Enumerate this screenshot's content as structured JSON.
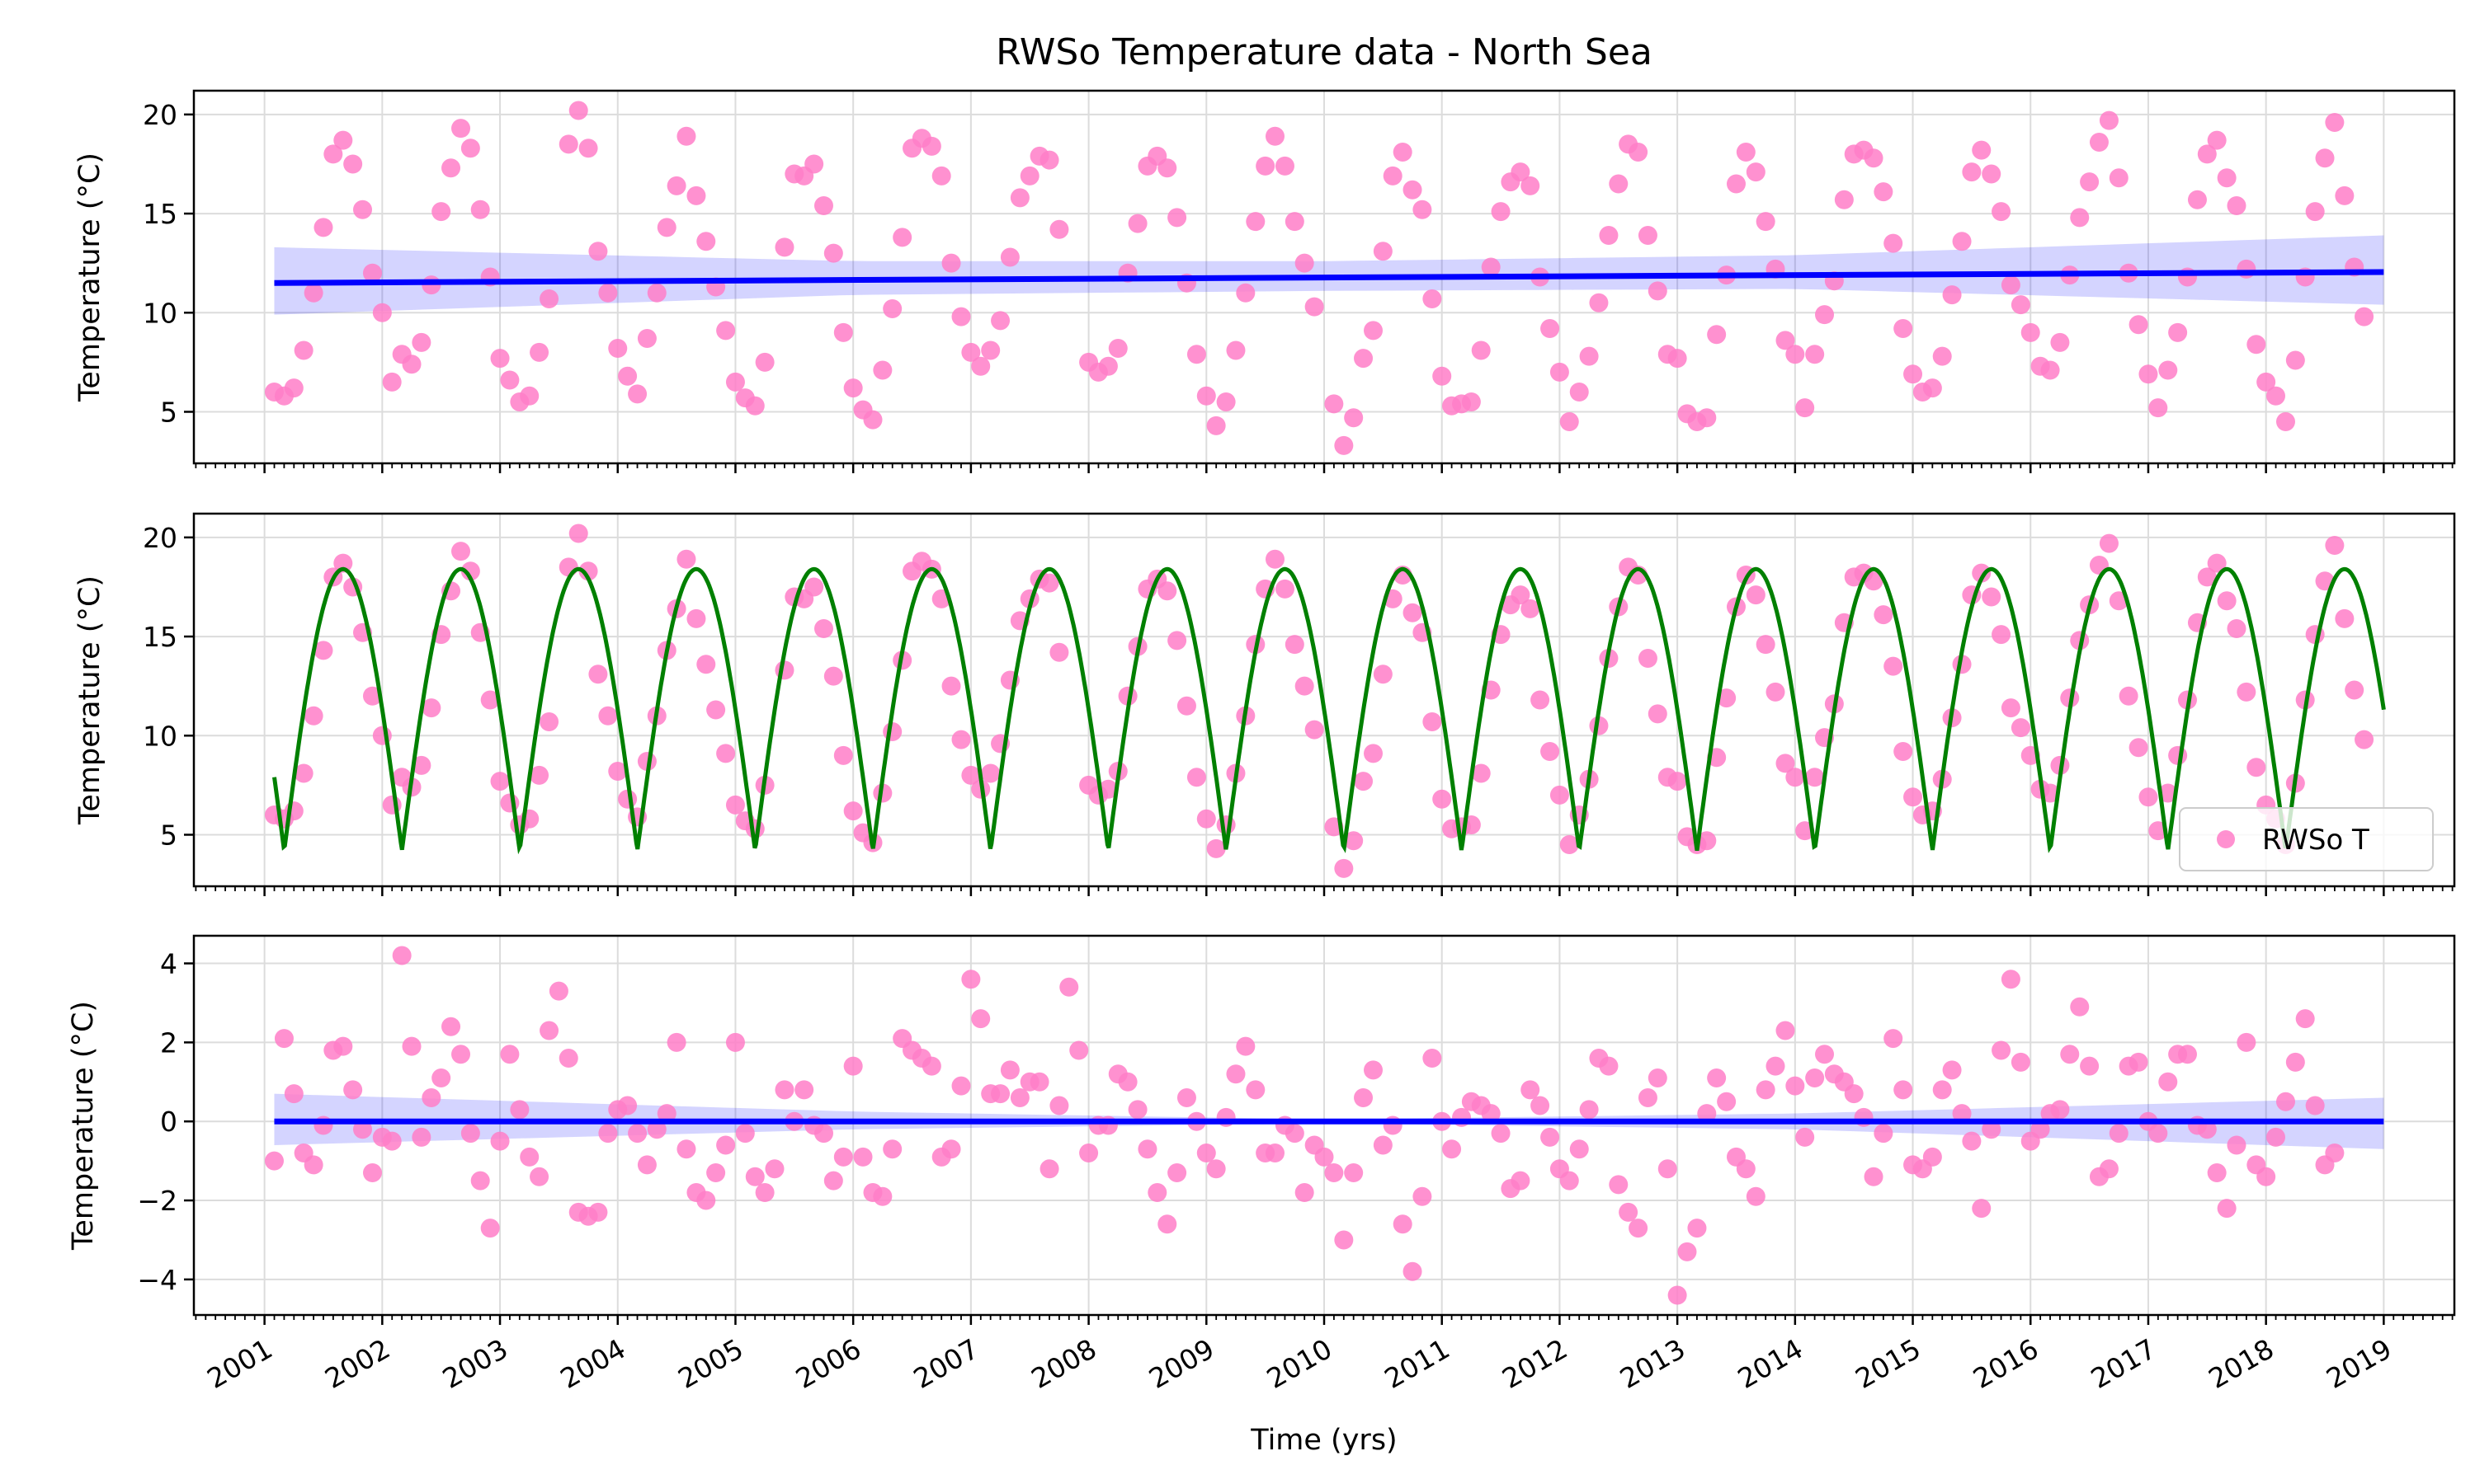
{
  "chart_data": {
    "type": "scatter",
    "title": "RWSo Temperature data - North Sea",
    "xlabel": "Time (yrs)",
    "xlim": [
      2000.4,
      2019.6
    ],
    "x_ticks": [
      "2001",
      "2002",
      "2003",
      "2004",
      "2005",
      "2006",
      "2007",
      "2008",
      "2009",
      "2010",
      "2011",
      "2012",
      "2013",
      "2014",
      "2015",
      "2016",
      "2017",
      "2018",
      "2019"
    ],
    "grid": true,
    "colors": {
      "points": "#ff7ec8",
      "trend": "#0000ff",
      "band": "#0000ff",
      "seasonal": "#008000"
    },
    "time": [
      2001.083,
      2001.167,
      2001.25,
      2001.333,
      2001.417,
      2001.5,
      2001.583,
      2001.667,
      2001.75,
      2001.833,
      2001.917,
      2002.0,
      2002.083,
      2002.167,
      2002.25,
      2002.333,
      2002.417,
      2002.5,
      2002.583,
      2002.667,
      2002.75,
      2002.833,
      2002.917,
      2003.0,
      2003.083,
      2003.167,
      2003.25,
      2003.333,
      2003.417,
      2003.5,
      2003.583,
      2003.667,
      2003.75,
      2003.833,
      2003.917,
      2004.0,
      2004.083,
      2004.167,
      2004.25,
      2004.333,
      2004.417,
      2004.5,
      2004.583,
      2004.667,
      2004.75,
      2004.833,
      2004.917,
      2005.0,
      2005.083,
      2005.167,
      2005.25,
      2005.333,
      2005.417,
      2005.5,
      2005.583,
      2005.667,
      2005.75,
      2005.833,
      2005.917,
      2006.0,
      2006.083,
      2006.167,
      2006.25,
      2006.333,
      2006.417,
      2006.5,
      2006.583,
      2006.667,
      2006.75,
      2006.833,
      2006.917,
      2007.0,
      2007.083,
      2007.167,
      2007.25,
      2007.333,
      2007.417,
      2007.5,
      2007.583,
      2007.667,
      2007.75,
      2007.833,
      2007.917,
      2008.0,
      2008.083,
      2008.167,
      2008.25,
      2008.333,
      2008.417,
      2008.5,
      2008.583,
      2008.667,
      2008.75,
      2008.833,
      2008.917,
      2009.0,
      2009.083,
      2009.167,
      2009.25,
      2009.333,
      2009.417,
      2009.5,
      2009.583,
      2009.667,
      2009.75,
      2009.833,
      2009.917,
      2010.0,
      2010.083,
      2010.167,
      2010.25,
      2010.333,
      2010.417,
      2010.5,
      2010.583,
      2010.667,
      2010.75,
      2010.833,
      2010.917,
      2011.0,
      2011.083,
      2011.167,
      2011.25,
      2011.333,
      2011.417,
      2011.5,
      2011.583,
      2011.667,
      2011.75,
      2011.833,
      2011.917,
      2012.0,
      2012.083,
      2012.167,
      2012.25,
      2012.333,
      2012.417,
      2012.5,
      2012.583,
      2012.667,
      2012.75,
      2012.833,
      2012.917,
      2013.0,
      2013.083,
      2013.167,
      2013.25,
      2013.333,
      2013.417,
      2013.5,
      2013.583,
      2013.667,
      2013.75,
      2013.833,
      2013.917,
      2014.0,
      2014.083,
      2014.167,
      2014.25,
      2014.333,
      2014.417,
      2014.5,
      2014.583,
      2014.667,
      2014.75,
      2014.833,
      2014.917,
      2015.0,
      2015.083,
      2015.167,
      2015.25,
      2015.333,
      2015.417,
      2015.5,
      2015.583,
      2015.667,
      2015.75,
      2015.833,
      2015.917,
      2016.0,
      2016.083,
      2016.167,
      2016.25,
      2016.333,
      2016.417,
      2016.5,
      2016.583,
      2016.667,
      2016.75,
      2016.833,
      2016.917,
      2017.0,
      2017.083,
      2017.167,
      2017.25,
      2017.333,
      2017.417,
      2017.5,
      2017.583,
      2017.667,
      2017.75,
      2017.833,
      2017.917,
      2018.0,
      2018.083,
      2018.167,
      2018.25,
      2018.333,
      2018.417,
      2018.5,
      2018.583,
      2018.667,
      2018.75,
      2018.833,
      2018.917,
      2019.0
    ],
    "temperature": [
      6.0,
      5.8,
      6.2,
      8.1,
      11.0,
      14.3,
      18.0,
      18.7,
      17.5,
      15.2,
      12.0,
      10.0,
      6.5,
      7.9,
      7.4,
      8.5,
      11.4,
      15.1,
      17.3,
      19.3,
      18.3,
      15.2,
      11.8,
      7.7,
      6.6,
      5.5,
      5.8,
      8.0,
      10.7,
      null,
      18.5,
      20.2,
      18.3,
      13.1,
      11.0,
      8.2,
      6.8,
      5.9,
      8.7,
      11.0,
      14.3,
      16.4,
      18.9,
      15.9,
      13.6,
      11.3,
      9.1,
      6.5,
      5.7,
      5.3,
      7.5,
      null,
      13.3,
      17.0,
      16.9,
      17.5,
      15.4,
      13.0,
      9.0,
      6.2,
      5.1,
      4.6,
      7.1,
      10.2,
      13.8,
      18.3,
      18.8,
      18.4,
      16.9,
      12.5,
      9.8,
      8.0,
      7.3,
      8.1,
      9.6,
      12.8,
      15.8,
      16.9,
      17.9,
      17.7,
      14.2,
      null,
      null,
      7.5,
      7.0,
      7.3,
      8.2,
      12.0,
      14.5,
      17.4,
      17.9,
      17.3,
      14.8,
      11.5,
      7.9,
      5.8,
      4.3,
      5.5,
      8.1,
      11.0,
      14.6,
      17.4,
      18.9,
      17.4,
      14.6,
      12.5,
      10.3,
      null,
      5.4,
      3.3,
      4.7,
      7.7,
      9.1,
      13.1,
      16.9,
      18.1,
      16.2,
      15.2,
      10.7,
      6.8,
      5.3,
      5.4,
      5.5,
      8.1,
      12.3,
      15.1,
      16.6,
      17.1,
      16.4,
      11.8,
      9.2,
      7.0,
      4.5,
      6.0,
      7.8,
      10.5,
      13.9,
      16.5,
      18.5,
      18.1,
      13.9,
      11.1,
      7.9,
      7.7,
      4.9,
      4.5,
      4.7,
      8.9,
      11.9,
      16.5,
      18.1,
      17.1,
      14.6,
      12.2,
      8.6,
      7.9,
      5.2,
      7.9,
      9.9,
      11.6,
      15.7,
      18.0,
      18.2,
      17.8,
      16.1,
      13.5,
      9.2,
      6.9,
      6.0,
      6.2,
      7.8,
      10.9,
      13.6,
      17.1,
      18.2,
      17.0,
      15.1,
      11.4,
      10.4,
      9.0,
      7.3,
      7.1,
      8.5,
      11.9,
      14.8,
      16.6,
      18.6,
      19.7,
      16.8,
      12.0,
      9.4,
      6.9,
      5.2,
      7.1,
      9.0,
      11.8,
      15.7,
      18.0,
      18.7,
      16.8,
      15.4,
      12.2,
      8.4,
      6.5,
      5.8,
      4.5,
      7.6,
      11.8,
      15.1,
      17.8,
      19.6,
      15.9,
      12.3,
      9.8
    ],
    "residual": [
      -1.0,
      2.1,
      0.7,
      -0.8,
      -1.1,
      -0.1,
      1.8,
      1.9,
      0.8,
      -0.2,
      -1.3,
      -0.4,
      -0.5,
      4.2,
      1.9,
      -0.4,
      0.6,
      1.1,
      2.4,
      1.7,
      -0.3,
      -1.5,
      -2.7,
      -0.5,
      1.7,
      0.3,
      -0.9,
      -1.4,
      2.3,
      3.3,
      1.6,
      -2.3,
      -2.4,
      -2.3,
      -0.3,
      0.3,
      0.4,
      -0.3,
      -1.1,
      -0.2,
      0.2,
      2.0,
      -0.7,
      -1.8,
      -2.0,
      -1.3,
      -0.6,
      2.0,
      -0.3,
      -1.4,
      -1.8,
      -1.2,
      0.8,
      0.0,
      0.8,
      -0.1,
      -0.3,
      -1.5,
      -0.9,
      1.4,
      -0.9,
      -1.8,
      -1.9,
      -0.7,
      2.1,
      1.8,
      1.6,
      1.4,
      -0.9,
      -0.7,
      0.9,
      3.6,
      2.6,
      0.7,
      0.7,
      1.3,
      0.6,
      1.0,
      1.0,
      -1.2,
      0.4,
      3.4,
      1.8,
      -0.8,
      -0.1,
      -0.1,
      1.2,
      1.0,
      0.3,
      -0.7,
      -1.8,
      -2.6,
      -1.3,
      0.6,
      0.0,
      -0.8,
      -1.2,
      0.1,
      1.2,
      1.9,
      0.8,
      -0.8,
      -0.8,
      -0.1,
      -0.3,
      -1.8,
      -0.6,
      -0.9,
      -1.3,
      -3.0,
      -1.3,
      0.6,
      1.3,
      -0.6,
      -0.1,
      -2.6,
      -3.8,
      -1.9,
      1.6,
      0.0,
      -0.7,
      0.1,
      0.5,
      0.4,
      0.2,
      -0.3,
      -1.7,
      -1.5,
      0.8,
      0.4,
      -0.4,
      -1.2,
      -1.5,
      -0.7,
      0.3,
      1.6,
      1.4,
      -1.6,
      -2.3,
      -2.7,
      0.6,
      1.1,
      -1.2,
      -4.4,
      -3.3,
      -2.7,
      0.2,
      1.1,
      0.5,
      -0.9,
      -1.2,
      -1.9,
      0.8,
      1.4,
      2.3,
      0.9,
      -0.4,
      1.1,
      1.7,
      1.2,
      1.0,
      0.7,
      0.1,
      -1.4,
      -0.3,
      2.1,
      0.8,
      -1.1,
      -1.2,
      -0.9,
      0.8,
      1.3,
      0.2,
      -0.5,
      -2.2,
      -0.2,
      1.8,
      3.6,
      1.5,
      -0.5,
      -0.2,
      0.2,
      0.3,
      1.7,
      2.9,
      1.4,
      -1.4,
      -1.2,
      -0.3,
      1.4,
      1.5,
      0.0,
      -0.3,
      1.0,
      1.7,
      1.7,
      -0.1,
      -0.2,
      -1.3,
      -2.2,
      -0.6,
      2.0,
      -1.1,
      -1.4,
      -0.4,
      0.5,
      1.5,
      2.6,
      0.4,
      -1.1,
      -0.8
    ],
    "panels": [
      {
        "ylabel": "Temperature (°C)",
        "ylim": [
          2.4,
          21.2
        ],
        "yticks": [
          5,
          10,
          15,
          20
        ],
        "series": [
          {
            "kind": "scatter",
            "values": "temperature"
          },
          {
            "kind": "line",
            "x": [
              2001.083,
              2019.0
            ],
            "y": [
              11.5,
              12.05
            ]
          },
          {
            "kind": "band",
            "x": [
              2001.083,
              2006,
              2010,
              2014,
              2019.0
            ],
            "lower": [
              9.9,
              10.9,
              11.1,
              11.2,
              10.4
            ],
            "upper": [
              13.3,
              12.6,
              12.6,
              12.9,
              13.9
            ]
          }
        ]
      },
      {
        "ylabel": "Temperature (°C)",
        "ylim": [
          2.4,
          21.2
        ],
        "yticks": [
          5,
          10,
          15,
          20
        ],
        "legend": {
          "label": "RWSo T",
          "position": "lower right"
        },
        "series": [
          {
            "kind": "scatter",
            "values": "temperature",
            "name": "RWSo T"
          },
          {
            "kind": "seasonal",
            "mean": 11.3,
            "amplitude": 7.1,
            "start": 8.6,
            "end": 12.3
          }
        ]
      },
      {
        "ylabel": "Temperature (°C)",
        "ylim": [
          -4.9,
          4.7
        ],
        "yticks": [
          -4,
          -2,
          0,
          2,
          4
        ],
        "series": [
          {
            "kind": "scatter",
            "values": "residual"
          },
          {
            "kind": "line",
            "x": [
              2001.083,
              2019.0
            ],
            "y": [
              0.0,
              0.0
            ]
          },
          {
            "kind": "band",
            "x": [
              2001.083,
              2006,
              2010,
              2014,
              2019.0
            ],
            "lower": [
              -0.6,
              -0.2,
              -0.05,
              -0.2,
              -0.7
            ],
            "upper": [
              0.7,
              0.25,
              0.05,
              0.2,
              0.6
            ]
          }
        ]
      }
    ]
  }
}
